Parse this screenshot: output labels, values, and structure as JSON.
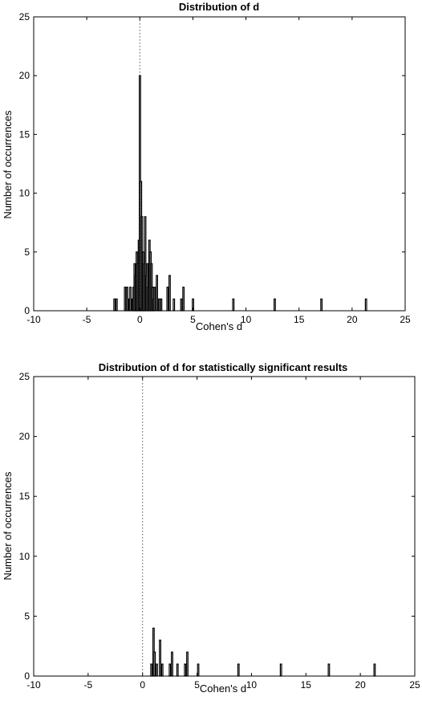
{
  "chart_data": [
    {
      "type": "bar",
      "title": "Distribution of d",
      "xlabel": "Cohen's d",
      "ylabel": "Number of occurrences",
      "xlim": [
        -10,
        25
      ],
      "ylim": [
        0,
        25
      ],
      "xticks": [
        -10,
        -5,
        0,
        5,
        10,
        15,
        20,
        25
      ],
      "yticks": [
        0,
        5,
        10,
        15,
        20,
        25
      ],
      "bin_width": 0.1,
      "reference_line_x": 0,
      "bins": [
        {
          "x": -2.4,
          "y": 1
        },
        {
          "x": -2.2,
          "y": 1
        },
        {
          "x": -1.4,
          "y": 2
        },
        {
          "x": -1.2,
          "y": 2
        },
        {
          "x": -1.0,
          "y": 1
        },
        {
          "x": -0.9,
          "y": 2
        },
        {
          "x": -0.7,
          "y": 1
        },
        {
          "x": -0.6,
          "y": 2
        },
        {
          "x": -0.5,
          "y": 4
        },
        {
          "x": -0.4,
          "y": 3
        },
        {
          "x": -0.3,
          "y": 5
        },
        {
          "x": -0.2,
          "y": 4
        },
        {
          "x": -0.1,
          "y": 6
        },
        {
          "x": 0.0,
          "y": 20
        },
        {
          "x": 0.1,
          "y": 11
        },
        {
          "x": 0.2,
          "y": 8
        },
        {
          "x": 0.3,
          "y": 5
        },
        {
          "x": 0.4,
          "y": 4
        },
        {
          "x": 0.5,
          "y": 8
        },
        {
          "x": 0.6,
          "y": 3
        },
        {
          "x": 0.7,
          "y": 4
        },
        {
          "x": 0.8,
          "y": 2
        },
        {
          "x": 0.9,
          "y": 6
        },
        {
          "x": 1.0,
          "y": 5
        },
        {
          "x": 1.1,
          "y": 4
        },
        {
          "x": 1.2,
          "y": 2
        },
        {
          "x": 1.3,
          "y": 1
        },
        {
          "x": 1.4,
          "y": 2
        },
        {
          "x": 1.6,
          "y": 3
        },
        {
          "x": 1.8,
          "y": 1
        },
        {
          "x": 2.0,
          "y": 1
        },
        {
          "x": 2.6,
          "y": 2
        },
        {
          "x": 2.8,
          "y": 3
        },
        {
          "x": 3.2,
          "y": 1
        },
        {
          "x": 3.9,
          "y": 1
        },
        {
          "x": 4.1,
          "y": 2
        },
        {
          "x": 5.0,
          "y": 1
        },
        {
          "x": 8.8,
          "y": 1
        },
        {
          "x": 12.7,
          "y": 1
        },
        {
          "x": 17.1,
          "y": 1
        },
        {
          "x": 21.3,
          "y": 1
        }
      ]
    },
    {
      "type": "bar",
      "title": "Distribution of d for statistically significant results",
      "xlabel": "Cohen's d",
      "ylabel": "Number of occurrences",
      "xlim": [
        -10,
        25
      ],
      "ylim": [
        0,
        25
      ],
      "xticks": [
        -10,
        -5,
        0,
        5,
        10,
        15,
        20,
        25
      ],
      "yticks": [
        0,
        5,
        10,
        15,
        20,
        25
      ],
      "bin_width": 0.1,
      "reference_line_x": 0,
      "bins": [
        {
          "x": 0.8,
          "y": 1
        },
        {
          "x": 1.0,
          "y": 4
        },
        {
          "x": 1.1,
          "y": 2
        },
        {
          "x": 1.3,
          "y": 1
        },
        {
          "x": 1.6,
          "y": 3
        },
        {
          "x": 1.8,
          "y": 1
        },
        {
          "x": 2.5,
          "y": 1
        },
        {
          "x": 2.7,
          "y": 2
        },
        {
          "x": 3.2,
          "y": 1
        },
        {
          "x": 3.9,
          "y": 1
        },
        {
          "x": 4.1,
          "y": 2
        },
        {
          "x": 5.1,
          "y": 1
        },
        {
          "x": 8.8,
          "y": 1
        },
        {
          "x": 12.7,
          "y": 1
        },
        {
          "x": 17.1,
          "y": 1
        },
        {
          "x": 21.3,
          "y": 1
        }
      ]
    }
  ]
}
